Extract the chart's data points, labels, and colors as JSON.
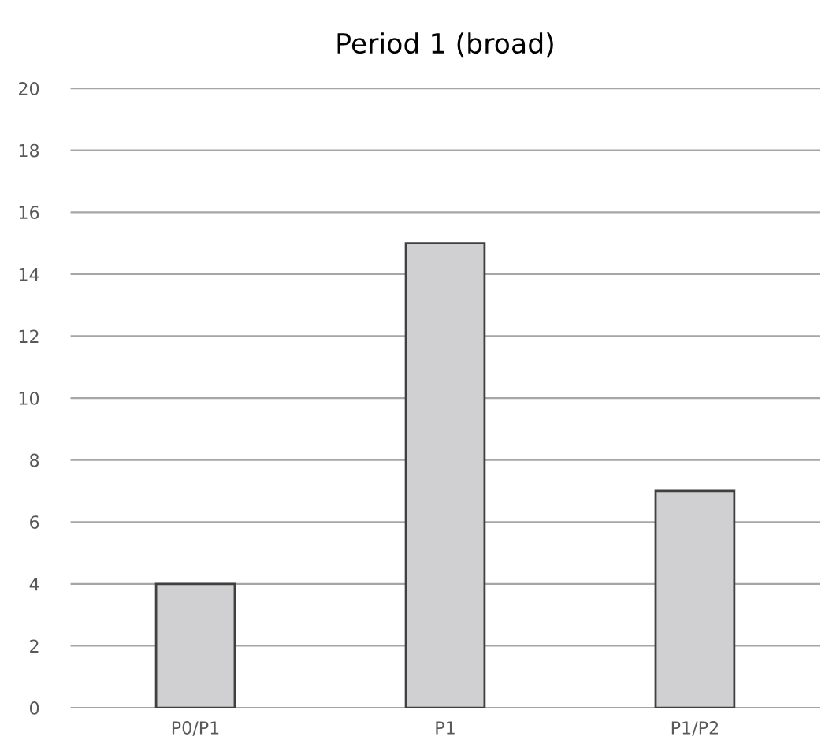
{
  "chart_data": {
    "type": "bar",
    "title": "Period 1 (broad)",
    "categories": [
      "P0/P1",
      "P1",
      "P1/P2"
    ],
    "values": [
      4,
      15,
      7
    ],
    "color": "#d0d0d2",
    "ylim": [
      0,
      20
    ],
    "yticks": [
      0,
      2,
      4,
      6,
      8,
      10,
      12,
      14,
      16,
      18,
      20
    ],
    "grid": "y",
    "legend": false
  }
}
